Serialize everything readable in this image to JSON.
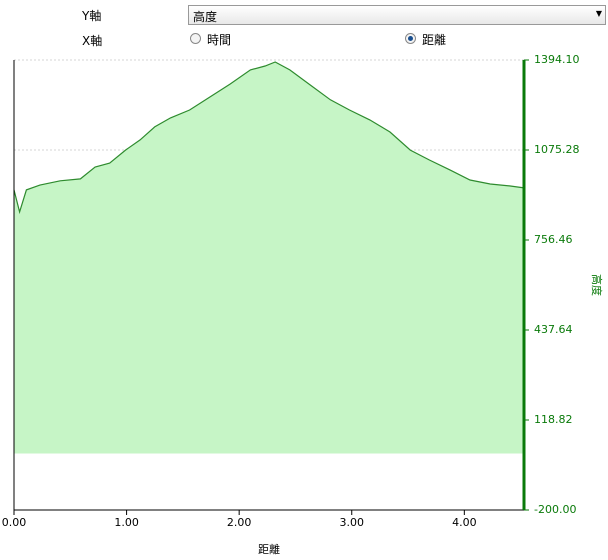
{
  "controls": {
    "y_axis_label": "Y軸",
    "y_axis_selected": "高度",
    "x_axis_label": "X軸",
    "x_options": [
      "時間",
      "距離"
    ],
    "x_selected": 1
  },
  "chart_data": {
    "type": "area",
    "x_label": "距離",
    "y_label": "高度",
    "color": "#2e8b2e",
    "fill": "#c6f5c6",
    "axis_color": "#0a7a0a",
    "grid": true,
    "xlim": [
      0,
      4.53
    ],
    "ylim": [
      -200,
      1394.1
    ],
    "xticks": [
      {
        "value": 0,
        "label": "0.00"
      },
      {
        "value": 1,
        "label": "1.00"
      },
      {
        "value": 2,
        "label": "2.00"
      },
      {
        "value": 3,
        "label": "3.00"
      },
      {
        "value": 4,
        "label": "4.00"
      }
    ],
    "yticks": [
      {
        "value": -200,
        "label": "-200.00"
      },
      118.82,
      437.64,
      756.46,
      1075.28,
      {
        "value": 1394.1,
        "label": "1394.10"
      }
    ],
    "x": [
      0,
      0.05,
      0.11,
      0.23,
      0.41,
      0.59,
      0.72,
      0.85,
      0.99,
      1.12,
      1.25,
      1.39,
      1.56,
      1.74,
      1.92,
      2.1,
      2.23,
      2.32,
      2.45,
      2.63,
      2.81,
      2.98,
      3.16,
      3.34,
      3.52,
      3.69,
      3.87,
      4.05,
      4.23,
      4.4,
      4.53
    ],
    "values": [
      934,
      856,
      934,
      951,
      966,
      973,
      1015,
      1029,
      1075,
      1111,
      1157,
      1189,
      1217,
      1263,
      1309,
      1359,
      1373,
      1387,
      1359,
      1306,
      1253,
      1217,
      1182,
      1139,
      1075,
      1040,
      1005,
      969,
      955,
      948,
      941
    ]
  }
}
